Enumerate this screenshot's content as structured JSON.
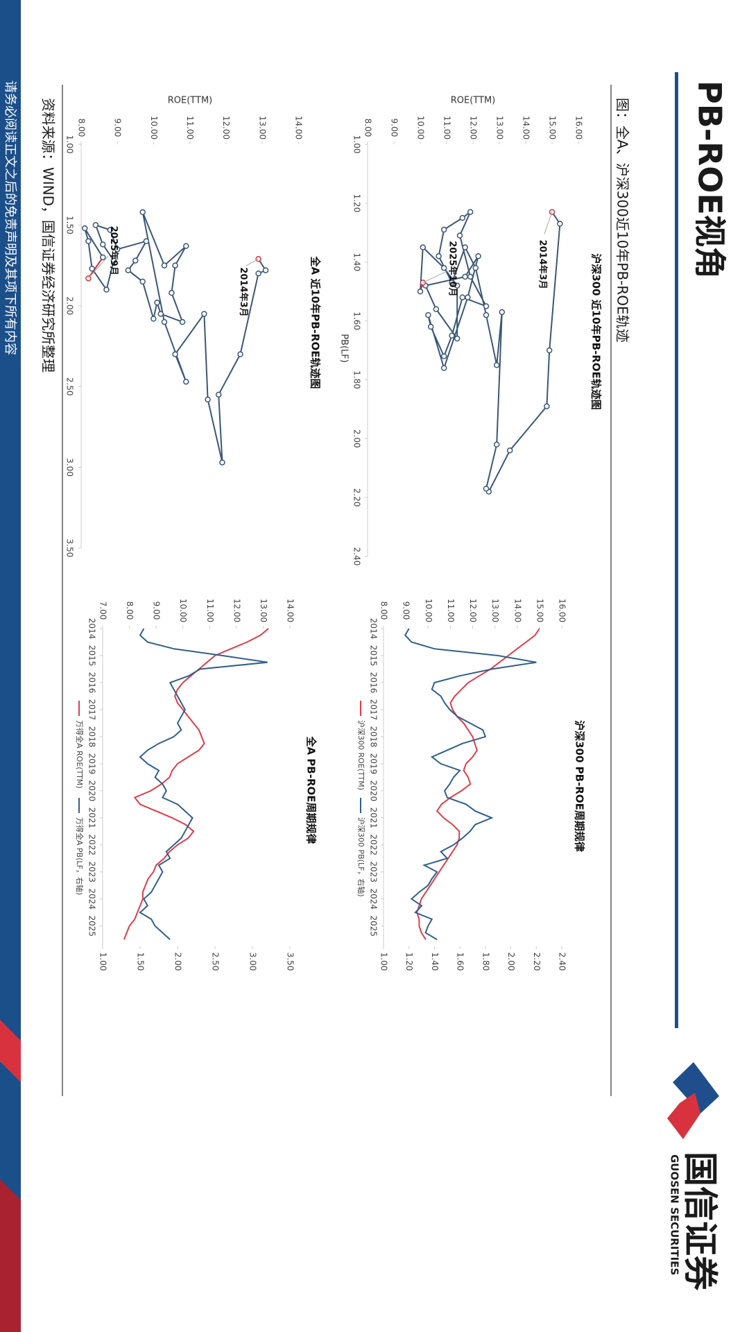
{
  "header": {
    "title": "PB-ROE视角",
    "logo_name": "国信证券",
    "logo_en": "GUOSEN SECURITIES"
  },
  "subtitle": "图：全A、沪深300近10年PB-ROE轨迹",
  "source": "资料来源：WIND，国信证券经济研究所整理",
  "disclaimer": "请务必阅读正文之后的免责声明及其项下所有内容",
  "chart_data": [
    {
      "type": "scatter",
      "title": "沪深300 近10年PB-ROE轨迹图",
      "x_label": "PB(LF)",
      "y_label": "ROE(TTM)",
      "annotations": [
        "2014年3月",
        "2025年10月"
      ],
      "color": "#3b5675",
      "highlight_color": "#d9323f",
      "x": [
        1.23,
        1.27,
        1.7,
        1.89,
        2.04,
        2.18,
        2.17,
        2.02,
        1.57,
        1.75,
        1.58,
        1.42,
        1.35,
        1.47,
        1.38,
        1.29,
        1.25,
        1.23,
        1.31,
        1.45,
        1.55,
        1.52,
        1.65,
        1.72,
        1.62,
        1.58,
        1.76,
        1.52,
        1.38,
        1.45,
        1.48,
        1.56,
        1.66,
        1.48,
        1.42,
        1.35,
        1.5,
        1.47
      ],
      "values": [
        15.0,
        15.3,
        14.9,
        14.8,
        13.4,
        12.6,
        12.5,
        12.9,
        13.1,
        12.9,
        12.5,
        12.1,
        11.7,
        11.2,
        10.7,
        10.9,
        11.6,
        11.9,
        11.5,
        11.9,
        12.5,
        11.6,
        11.2,
        10.9,
        10.4,
        10.3,
        10.9,
        11.8,
        12.2,
        11.7,
        10.2,
        10.6,
        11.4,
        11.4,
        10.9,
        10.1,
        10.0,
        10.1
      ],
      "xlim": [
        1,
        2.4
      ],
      "xticks": [
        {
          "value": 1,
          "label": "1.00"
        },
        {
          "value": 1.2,
          "label": "1.20"
        },
        {
          "value": 1.4,
          "label": "1.40"
        },
        {
          "value": 1.6,
          "label": "1.60"
        },
        {
          "value": 1.8,
          "label": "1.80"
        },
        {
          "value": 2,
          "label": "2.00"
        },
        {
          "value": 2.2,
          "label": "2.20"
        },
        {
          "value": 2.4,
          "label": "2.40"
        }
      ],
      "ylim": [
        8,
        16
      ],
      "yticks": [
        {
          "value": 8,
          "label": "8.00"
        },
        {
          "value": 9,
          "label": "9.00"
        },
        {
          "value": 10,
          "label": "10.00"
        },
        {
          "value": 11,
          "label": "11.00"
        },
        {
          "value": 12,
          "label": "12.00"
        },
        {
          "value": 13,
          "label": "13.00"
        },
        {
          "value": 14,
          "label": "14.00"
        },
        {
          "value": 15,
          "label": "15.00"
        },
        {
          "value": 16,
          "label": "16.00"
        }
      ]
    },
    {
      "type": "scatter",
      "title": "全A 近10年PB-ROE轨迹图",
      "y_label": "ROE(TTM)",
      "annotations": [
        "2014年3月",
        "2025年9月"
      ],
      "color": "#3b5675",
      "highlight_color": "#d9323f",
      "x": [
        1.71,
        1.78,
        1.8,
        2.3,
        2.55,
        2.97,
        2.58,
        2.05,
        2.3,
        2.47,
        2.1,
        1.42,
        1.75,
        1.63,
        1.75,
        1.92,
        2.1,
        2.05,
        1.98,
        2.08,
        1.85,
        1.78,
        1.72,
        1.6,
        1.65,
        1.53,
        1.5,
        1.62,
        1.72,
        1.9,
        1.77,
        1.6,
        1.52,
        1.7,
        1.83
      ],
      "values": [
        12.9,
        13.1,
        12.9,
        12.4,
        11.8,
        11.9,
        11.5,
        11.4,
        10.6,
        10.9,
        10.3,
        9.7,
        10.3,
        10.9,
        10.6,
        10.5,
        10.8,
        10.2,
        10.1,
        10.0,
        9.7,
        9.3,
        9.5,
        9.8,
        9.0,
        8.8,
        8.4,
        8.6,
        8.9,
        8.7,
        8.3,
        8.2,
        8.1,
        8.6,
        8.2
      ],
      "xlim": [
        1,
        3.5
      ],
      "xticks": [
        {
          "value": 1,
          "label": "1.00"
        },
        {
          "value": 1.5,
          "label": "1.50"
        },
        {
          "value": 2,
          "label": "2.00"
        },
        {
          "value": 2.5,
          "label": "2.50"
        },
        {
          "value": 3,
          "label": "3.00"
        },
        {
          "value": 3.5,
          "label": "3.50"
        }
      ],
      "ylim": [
        8,
        14
      ],
      "yticks": [
        {
          "value": 8,
          "label": "8.00"
        },
        {
          "value": 9,
          "label": "9.00"
        },
        {
          "value": 10,
          "label": "10.00"
        },
        {
          "value": 11,
          "label": "11.00"
        },
        {
          "value": 12,
          "label": "12.00"
        },
        {
          "value": 13,
          "label": "13.00"
        },
        {
          "value": 14,
          "label": "14.00"
        }
      ]
    },
    {
      "type": "line",
      "title": "沪深300 PB-ROE周期规律",
      "x": [
        2014,
        2014.25,
        2014.5,
        2014.75,
        2015,
        2015.25,
        2015.5,
        2015.75,
        2016,
        2016.25,
        2016.5,
        2016.75,
        2017,
        2017.25,
        2017.5,
        2017.75,
        2018,
        2018.25,
        2018.5,
        2018.75,
        2019,
        2019.25,
        2019.5,
        2019.75,
        2020,
        2020.25,
        2020.5,
        2020.75,
        2021,
        2021.25,
        2021.5,
        2021.75,
        2022,
        2022.25,
        2022.5,
        2022.75,
        2023,
        2023.25,
        2023.5,
        2023.75,
        2024,
        2024.25,
        2024.5,
        2024.75,
        2025,
        2025.25,
        2025.5
      ],
      "series": [
        {
          "name": "沪深300 ROE(TTM)",
          "color": "#e03c4a",
          "values": [
            15.0,
            14.8,
            14.4,
            14.0,
            13.6,
            13.2,
            12.8,
            12.3,
            11.8,
            11.5,
            11.2,
            11.0,
            11.1,
            11.3,
            11.6,
            11.8,
            12.0,
            12.1,
            12.2,
            12.0,
            11.7,
            11.6,
            11.8,
            11.9,
            11.5,
            11.0,
            10.6,
            10.4,
            10.7,
            11.1,
            11.4,
            11.4,
            11.3,
            11.1,
            10.9,
            10.7,
            10.5,
            10.3,
            10.1,
            9.9,
            9.7,
            9.6,
            9.5,
            9.6,
            9.6,
            9.7,
            9.9
          ]
        },
        {
          "name": "沪深300 PB(LF，右轴)",
          "color": "#2f5f8a",
          "axis": "y2",
          "values": [
            1.2,
            1.17,
            1.22,
            1.4,
            1.9,
            2.2,
            1.85,
            1.6,
            1.4,
            1.38,
            1.45,
            1.48,
            1.52,
            1.58,
            1.68,
            1.78,
            1.8,
            1.62,
            1.5,
            1.38,
            1.45,
            1.6,
            1.55,
            1.52,
            1.48,
            1.5,
            1.65,
            1.72,
            1.85,
            1.72,
            1.68,
            1.62,
            1.55,
            1.45,
            1.5,
            1.32,
            1.42,
            1.38,
            1.35,
            1.28,
            1.22,
            1.3,
            1.25,
            1.38,
            1.35,
            1.33,
            1.42
          ]
        }
      ],
      "xlim": [
        2014,
        2025.75
      ],
      "xticks": [
        2014,
        2015,
        2016,
        2017,
        2018,
        2019,
        2020,
        2021,
        2022,
        2023,
        2024,
        2025
      ],
      "ylim": [
        8,
        16
      ],
      "yticks": [
        {
          "value": 8,
          "label": "8.00"
        },
        {
          "value": 9,
          "label": "9.00"
        },
        {
          "value": 10,
          "label": "10.00"
        },
        {
          "value": 11,
          "label": "11.00"
        },
        {
          "value": 12,
          "label": "12.00"
        },
        {
          "value": 13,
          "label": "13.00"
        },
        {
          "value": 14,
          "label": "14.00"
        },
        {
          "value": 15,
          "label": "15.00"
        },
        {
          "value": 16,
          "label": "16.00"
        }
      ],
      "y2lim": [
        1,
        2.4
      ],
      "y2ticks": [
        {
          "value": 1,
          "label": "1.00"
        },
        {
          "value": 1.2,
          "label": "1.20"
        },
        {
          "value": 1.4,
          "label": "1.40"
        },
        {
          "value": 1.6,
          "label": "1.60"
        },
        {
          "value": 1.8,
          "label": "1.80"
        },
        {
          "value": 2,
          "label": "2.00"
        },
        {
          "value": 2.2,
          "label": "2.20"
        },
        {
          "value": 2.4,
          "label": "2.40"
        }
      ],
      "legend": "bottom"
    },
    {
      "type": "line",
      "title": "全A PB-ROE周期规律",
      "x": [
        2014,
        2014.25,
        2014.5,
        2014.75,
        2015,
        2015.25,
        2015.5,
        2015.75,
        2016,
        2016.25,
        2016.5,
        2016.75,
        2017,
        2017.25,
        2017.5,
        2017.75,
        2018,
        2018.25,
        2018.5,
        2018.75,
        2019,
        2019.25,
        2019.5,
        2019.75,
        2020,
        2020.25,
        2020.5,
        2020.75,
        2021,
        2021.25,
        2021.5,
        2021.75,
        2022,
        2022.25,
        2022.5,
        2022.75,
        2023,
        2023.25,
        2023.5,
        2023.75,
        2024,
        2024.25,
        2024.5,
        2024.75,
        2025,
        2025.25,
        2025.5
      ],
      "series": [
        {
          "name": "万得全A ROE(TTM)",
          "color": "#e03c4a",
          "values": [
            13.2,
            12.9,
            12.4,
            11.8,
            11.2,
            10.9,
            10.6,
            10.3,
            10.0,
            9.8,
            9.7,
            9.8,
            10.0,
            10.2,
            10.4,
            10.6,
            10.7,
            10.8,
            10.6,
            10.2,
            9.8,
            9.6,
            9.5,
            9.2,
            8.8,
            8.2,
            8.4,
            9.0,
            9.6,
            10.1,
            10.4,
            10.2,
            9.8,
            9.5,
            9.3,
            9.0,
            8.9,
            8.7,
            8.6,
            8.5,
            8.5,
            8.4,
            8.3,
            8.2,
            8.0,
            7.9,
            7.8
          ]
        },
        {
          "name": "万得全A PB(LF，右轴)",
          "color": "#2f5f8a",
          "axis": "y2",
          "values": [
            1.55,
            1.5,
            1.6,
            1.95,
            2.6,
            3.2,
            2.3,
            2.15,
            1.9,
            1.95,
            2.0,
            2.05,
            2.1,
            2.05,
            2.0,
            2.05,
            1.95,
            1.75,
            1.6,
            1.5,
            1.6,
            1.75,
            1.7,
            1.8,
            1.85,
            1.8,
            2.0,
            2.1,
            2.2,
            2.15,
            2.1,
            2.05,
            1.95,
            1.85,
            1.9,
            1.75,
            1.8,
            1.75,
            1.7,
            1.65,
            1.55,
            1.6,
            1.5,
            1.65,
            1.7,
            1.8,
            1.9
          ]
        }
      ],
      "xlim": [
        2014,
        2025.75
      ],
      "xticks": [
        2014,
        2015,
        2016,
        2017,
        2018,
        2019,
        2020,
        2021,
        2022,
        2023,
        2024,
        2025
      ],
      "ylim": [
        7,
        14
      ],
      "yticks": [
        {
          "value": 7,
          "label": "7.00"
        },
        {
          "value": 8,
          "label": "8.00"
        },
        {
          "value": 9,
          "label": "9.00"
        },
        {
          "value": 10,
          "label": "10.00"
        },
        {
          "value": 11,
          "label": "11.00"
        },
        {
          "value": 12,
          "label": "12.00"
        },
        {
          "value": 13,
          "label": "13.00"
        },
        {
          "value": 14,
          "label": "14.00"
        }
      ],
      "y2lim": [
        1,
        3.5
      ],
      "y2ticks": [
        {
          "value": 1,
          "label": "1.00"
        },
        {
          "value": 1.5,
          "label": "1.50"
        },
        {
          "value": 2,
          "label": "2.00"
        },
        {
          "value": 2.5,
          "label": "2.50"
        },
        {
          "value": 3,
          "label": "3.00"
        },
        {
          "value": 3.5,
          "label": "3.50"
        }
      ],
      "legend": "bottom"
    }
  ]
}
